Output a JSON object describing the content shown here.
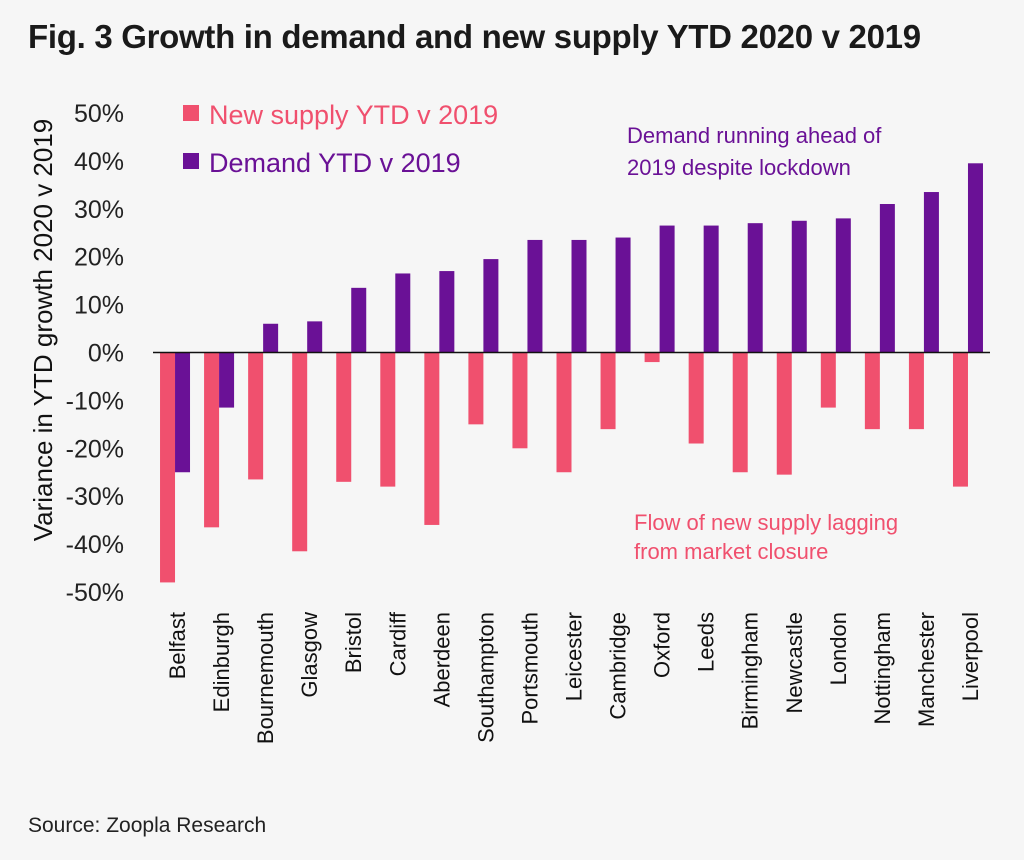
{
  "title": "Fig. 3 Growth in demand and new supply YTD 2020 v 2019",
  "source": "Source: Zoopla Research",
  "colors": {
    "supply": "#f0506e",
    "demand": "#6a1196",
    "axis": "#111111",
    "tick_text": "#222222"
  },
  "annotations": {
    "demand_line1": "Demand running ahead of",
    "demand_line2": "2019 despite lockdown",
    "supply_line1": "Flow of new supply lagging",
    "supply_line2": "from market closure"
  },
  "chart_data": {
    "type": "bar",
    "title": "Fig. 3 Growth in demand and new supply YTD 2020 v 2019",
    "xlabel": "",
    "ylabel": "Variance in YTD growth 2020 v 2019",
    "ylim": [
      -50,
      50
    ],
    "yticks": [
      50,
      40,
      30,
      20,
      10,
      0,
      -10,
      -20,
      -30,
      -40,
      -50
    ],
    "ytick_labels": [
      "50%",
      "40%",
      "30%",
      "20%",
      "10%",
      "0%",
      "-10%",
      "-20%",
      "-30%",
      "-40%",
      "-50%"
    ],
    "grid": false,
    "legend_position": "top-left",
    "categories": [
      "Belfast",
      "Edinburgh",
      "Bournemouth",
      "Glasgow",
      "Bristol",
      "Cardiff",
      "Aberdeen",
      "Southampton",
      "Portsmouth",
      "Leicester",
      "Cambridge",
      "Oxford",
      "Leeds",
      "Birmingham",
      "Newcastle",
      "London",
      "Nottingham",
      "Manchester",
      "Liverpool"
    ],
    "series": [
      {
        "name": "New supply YTD v 2019",
        "values": [
          -48,
          -36.5,
          -26.5,
          -41.5,
          -27,
          -28,
          -36,
          -15,
          -20,
          -25,
          -16,
          -2,
          -19,
          -25,
          -25.5,
          -11.5,
          -16,
          -16,
          -28
        ]
      },
      {
        "name": "Demand YTD v 2019",
        "values": [
          -25,
          -11.5,
          6,
          6.5,
          13.5,
          16.5,
          17,
          19.5,
          23.5,
          23.5,
          24,
          26.5,
          26.5,
          27,
          27.5,
          28,
          31,
          33.5,
          39.5
        ]
      }
    ]
  }
}
